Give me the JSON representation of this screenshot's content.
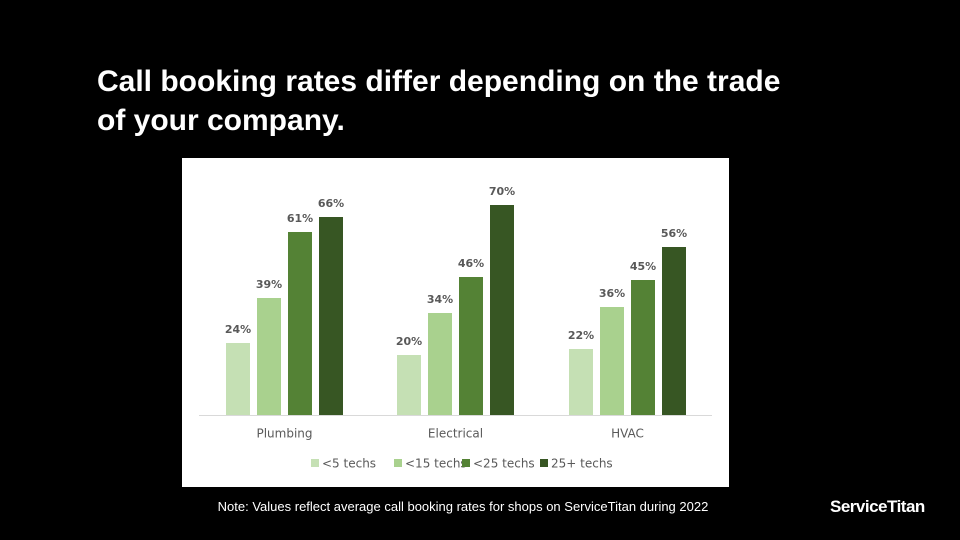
{
  "title": "Call booking rates differ depending on the trade of your company.",
  "chart_data": {
    "type": "bar",
    "categories": [
      "Plumbing",
      "Electrical",
      "HVAC"
    ],
    "series": [
      {
        "name": "<5 techs",
        "color": "#c5e0b4",
        "values": [
          24,
          20,
          22
        ],
        "value_labels": [
          "24%",
          "20%",
          "22%"
        ]
      },
      {
        "name": "<15 techs",
        "color": "#a9d18e",
        "values": [
          39,
          34,
          36
        ],
        "value_labels": [
          "39%",
          "34%",
          "36%"
        ]
      },
      {
        "name": "<25 techs",
        "color": "#548235",
        "values": [
          61,
          46,
          45
        ],
        "value_labels": [
          "61%",
          "46%",
          "45%"
        ]
      },
      {
        "name": "25+ techs",
        "color": "#375623",
        "values": [
          66,
          70,
          56
        ],
        "value_labels": [
          "66%",
          "70%",
          "56%"
        ]
      }
    ],
    "legend": "bottom"
  },
  "note": "Note: Values reflect average call booking rates for shops on ServiceTitan during 2022",
  "logo": "ServiceTitan"
}
